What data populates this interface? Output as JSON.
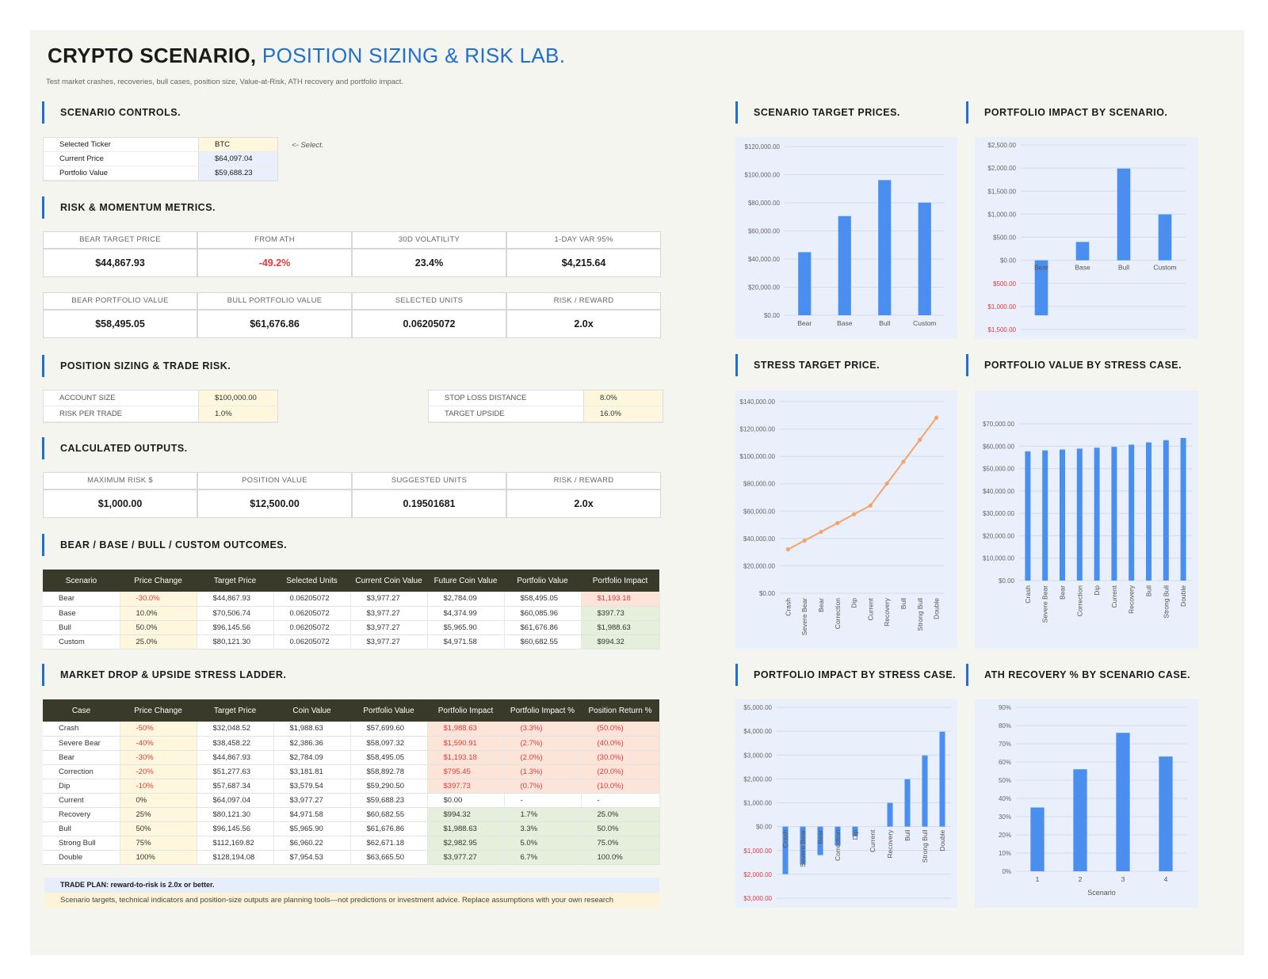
{
  "title": {
    "main": "CRYPTO SCENARIO,",
    "highlight": "POSITION SIZING & RISK LAB."
  },
  "subtitle": "Test market crashes, recoveries, bull cases, position size, Value-at-Risk, ATH recovery and portfolio impact.",
  "sections": {
    "controls": "SCENARIO CONTROLS.",
    "risk": "RISK & MOMENTUM METRICS.",
    "sizing": "POSITION SIZING & TRADE RISK.",
    "outputs": "CALCULATED OUTPUTS.",
    "outcomes": "BEAR / BASE / BULL / CUSTOM OUTCOMES.",
    "ladder": "MARKET DROP & UPSIDE STRESS LADDER."
  },
  "controls": {
    "ticker_label": "Selected Ticker",
    "ticker": "BTC",
    "price_label": "Current Price",
    "price": "$64,097.04",
    "portfolio_label": "Portfolio Value",
    "portfolio": "$59,688.23",
    "hint": "<- Select."
  },
  "risk_metrics": [
    {
      "label": "BEAR TARGET PRICE",
      "value": "$44,867.93"
    },
    {
      "label": "FROM ATH",
      "value": "-49.2%"
    },
    {
      "label": "30D VOLATILITY",
      "value": "23.4%"
    },
    {
      "label": "1-Day VaR 95%",
      "value": "$4,215.64"
    }
  ],
  "risk_metrics2": [
    {
      "label": "BEAR PORTFOLIO VALUE",
      "value": "$58,495.05"
    },
    {
      "label": "BULL PORTFOLIO VALUE",
      "value": "$61,676.86"
    },
    {
      "label": "SELECTED UNITS",
      "value": "0.06205072"
    },
    {
      "label": "RISK / REWARD",
      "value": "2.0x"
    }
  ],
  "sizing": {
    "account_label": "ACCOUNT SIZE",
    "account": "$100,000.00",
    "risk_label": "RISK PER TRADE",
    "risk": "1.0%",
    "stop_label": "STOP LOSS DISTANCE",
    "stop": "8.0%",
    "upside_label": "TARGET UPSIDE",
    "upside": "16.0%"
  },
  "outputs": [
    {
      "label": "MAXIMUM RISK $",
      "value": "$1,000.00"
    },
    {
      "label": "POSITION VALUE",
      "value": "$12,500.00"
    },
    {
      "label": "SUGGESTED UNITS",
      "value": "0.19501681"
    },
    {
      "label": "RISK / REWARD",
      "value": "2.0x"
    }
  ],
  "outcomes": {
    "headers": [
      "Scenario",
      "Price Change",
      "Target Price",
      "Selected Units",
      "Current Coin Value",
      "Future Coin Value",
      "Portfolio Value",
      "Portfolio Impact"
    ],
    "rows": [
      [
        "Bear",
        "-30.0%",
        "$44,867.93",
        "0.06205072",
        "$3,977.27",
        "$2,784.09",
        "$58,495.05",
        "$1,193.18"
      ],
      [
        "Base",
        "10.0%",
        "$70,506.74",
        "0.06205072",
        "$3,977.27",
        "$4,374.99",
        "$60,085.96",
        "$397.73"
      ],
      [
        "Bull",
        "50.0%",
        "$96,145.56",
        "0.06205072",
        "$3,977.27",
        "$5,965.90",
        "$61,676.86",
        "$1,988.63"
      ],
      [
        "Custom",
        "25.0%",
        "$80,121.30",
        "0.06205072",
        "$3,977.27",
        "$4,971.58",
        "$60,682.55",
        "$994.32"
      ]
    ]
  },
  "ladder": {
    "headers": [
      "Case",
      "Price Change",
      "Target Price",
      "Coin Value",
      "Portfolio Value",
      "Portfolio Impact",
      "Portfolio Impact %",
      "Position Return %"
    ],
    "rows": [
      [
        "Crash",
        "-50%",
        "$32,048.52",
        "$1,988.63",
        "$57,699.60",
        "$1,988.63",
        "(3.3%)",
        "(50.0%)"
      ],
      [
        "Severe Bear",
        "-40%",
        "$38,458.22",
        "$2,386.36",
        "$58,097.32",
        "$1,590.91",
        "(2.7%)",
        "(40.0%)"
      ],
      [
        "Bear",
        "-30%",
        "$44,867.93",
        "$2,784.09",
        "$58,495.05",
        "$1,193.18",
        "(2.0%)",
        "(30.0%)"
      ],
      [
        "Correction",
        "-20%",
        "$51,277.63",
        "$3,181.81",
        "$58,892.78",
        "$795.45",
        "(1.3%)",
        "(20.0%)"
      ],
      [
        "Dip",
        "-10%",
        "$57,687.34",
        "$3,579.54",
        "$59,290.50",
        "$397.73",
        "(0.7%)",
        "(10.0%)"
      ],
      [
        "Current",
        "0%",
        "$64,097.04",
        "$3,977.27",
        "$59,688.23",
        "$0.00",
        "-",
        "-"
      ],
      [
        "Recovery",
        "25%",
        "$80,121.30",
        "$4,971.58",
        "$60,682.55",
        "$994.32",
        "1.7%",
        "25.0%"
      ],
      [
        "Bull",
        "50%",
        "$96,145.56",
        "$5,965.90",
        "$61,676.86",
        "$1,988.63",
        "3.3%",
        "50.0%"
      ],
      [
        "Strong Bull",
        "75%",
        "$112,169.82",
        "$6,960.22",
        "$62,671.18",
        "$2,982.95",
        "5.0%",
        "75.0%"
      ],
      [
        "Double",
        "100%",
        "$128,194.08",
        "$7,954.53",
        "$63,665.50",
        "$3,977.27",
        "6.7%",
        "100.0%"
      ]
    ]
  },
  "notes": {
    "plan": "TRADE PLAN: reward-to-risk is 2.0x or better.",
    "disclaimer": "Scenario targets, technical indicators and position-size outputs are planning tools—not predictions or investment advice. Replace assumptions with your own research"
  },
  "chart_titles": {
    "c1": "SCENARIO TARGET PRICES.",
    "c2": "PORTFOLIO IMPACT BY SCENARIO.",
    "c3": "STRESS TARGET PRICE.",
    "c4": "PORTFOLIO VALUE BY STRESS CASE.",
    "c5": "PORTFOLIO IMPACT BY STRESS CASE.",
    "c6": "ATH RECOVERY % BY SCENARIO CASE."
  },
  "colors": {
    "accent": "#1f6fd1",
    "bar": "#4a8ff0",
    "line": "#f2a46b",
    "header": "#3a3a2b",
    "negative": "#e03a3a"
  },
  "chart_data": [
    {
      "id": "c1",
      "type": "bar",
      "title": "SCENARIO TARGET PRICES.",
      "categories": [
        "Bear",
        "Base",
        "Bull",
        "Custom"
      ],
      "values": [
        44867.93,
        70506.74,
        96145.56,
        80121.3
      ],
      "ylim": [
        0,
        120000
      ],
      "yticks": [
        0,
        20000,
        40000,
        60000,
        80000,
        100000,
        120000
      ],
      "ytick_labels": [
        "$0.00",
        "$20,000.00",
        "$40,000.00",
        "$60,000.00",
        "$80,000.00",
        "$100,000.00",
        "$120,000.00"
      ],
      "grid": true
    },
    {
      "id": "c2",
      "type": "bar",
      "title": "PORTFOLIO IMPACT BY SCENARIO.",
      "categories": [
        "Bear",
        "Base",
        "Bull",
        "Custom"
      ],
      "values": [
        -1193.18,
        397.73,
        1988.63,
        994.32
      ],
      "ylim": [
        -1500,
        2500
      ],
      "yticks": [
        -1500,
        -1000,
        -500,
        0,
        500,
        1000,
        1500,
        2000,
        2500
      ],
      "ytick_labels": [
        "$1,500.00",
        "$1,000.00",
        "$500.00",
        "$0.00",
        "$500.00",
        "$1,000.00",
        "$1,500.00",
        "$2,000.00",
        "$2,500.00"
      ],
      "grid": true
    },
    {
      "id": "c3",
      "type": "line",
      "title": "STRESS TARGET PRICE.",
      "categories": [
        "Crash",
        "Severe Bear",
        "Bear",
        "Correction",
        "Dip",
        "Current",
        "Recovery",
        "Bull",
        "Strong Bull",
        "Double"
      ],
      "values": [
        32048.52,
        38458.22,
        44867.93,
        51277.63,
        57687.34,
        64097.04,
        80121.3,
        96145.56,
        112169.82,
        128194.08
      ],
      "ylim": [
        0,
        140000
      ],
      "yticks": [
        0,
        20000,
        40000,
        60000,
        80000,
        100000,
        120000,
        140000
      ],
      "ytick_labels": [
        "$0.00",
        "$20,000.00",
        "$40,000.00",
        "$60,000.00",
        "$80,000.00",
        "$100,000.00",
        "$120,000.00",
        "$140,000.00"
      ],
      "grid": true
    },
    {
      "id": "c4",
      "type": "bar",
      "title": "PORTFOLIO VALUE BY STRESS CASE.",
      "categories": [
        "Crash",
        "Severe Bear",
        "Bear",
        "Correction",
        "Dip",
        "Current",
        "Recovery",
        "Bull",
        "Strong Bull",
        "Double"
      ],
      "values": [
        57699.6,
        58097.32,
        58495.05,
        58892.78,
        59290.5,
        59688.23,
        60682.55,
        61676.86,
        62671.18,
        63665.5
      ],
      "ylim": [
        0,
        70000
      ],
      "yticks": [
        0,
        10000,
        20000,
        30000,
        40000,
        50000,
        60000,
        70000
      ],
      "ytick_labels": [
        "$0.00",
        "$10,000.00",
        "$20,000.00",
        "$30,000.00",
        "$40,000.00",
        "$50,000.00",
        "$60,000.00",
        "$70,000.00"
      ],
      "grid": true
    },
    {
      "id": "c5",
      "type": "bar",
      "title": "PORTFOLIO IMPACT BY STRESS CASE.",
      "categories": [
        "Crash",
        "Severe Bear",
        "Bear",
        "Correction",
        "Dip",
        "Current",
        "Recovery",
        "Bull",
        "Strong Bull",
        "Double"
      ],
      "values": [
        -1988.63,
        -1590.91,
        -1193.18,
        -795.45,
        -397.73,
        0,
        994.32,
        1988.63,
        2982.95,
        3977.27
      ],
      "ylim": [
        -3000,
        5000
      ],
      "yticks": [
        -3000,
        -2000,
        -1000,
        0,
        1000,
        2000,
        3000,
        4000,
        5000
      ],
      "ytick_labels": [
        "$3,000.00",
        "$2,000.00",
        "$1,000.00",
        "$0.00",
        "$1,000.00",
        "$2,000.00",
        "$3,000.00",
        "$4,000.00",
        "$5,000.00"
      ],
      "grid": true
    },
    {
      "id": "c6",
      "type": "bar",
      "title": "ATH RECOVERY % BY SCENARIO CASE.",
      "categories": [
        "1",
        "2",
        "3",
        "4"
      ],
      "values": [
        35,
        56,
        76,
        63
      ],
      "ylim": [
        0,
        90
      ],
      "yticks": [
        0,
        10,
        20,
        30,
        40,
        50,
        60,
        70,
        80,
        90
      ],
      "ytick_labels": [
        "0%",
        "10%",
        "20%",
        "30%",
        "40%",
        "50%",
        "60%",
        "70%",
        "80%",
        "90%"
      ],
      "xlabel": "Scenario",
      "grid": true
    }
  ]
}
